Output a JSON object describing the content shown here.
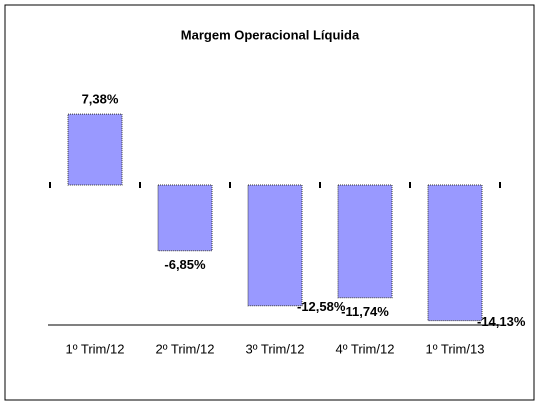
{
  "chart_data": {
    "type": "bar",
    "title": "Margem Operacional Líquida",
    "categories": [
      "1º Trim/12",
      "2º Trim/12",
      "3º Trim/12",
      "4º Trim/12",
      "1º Trim/13"
    ],
    "values": [
      7.38,
      -6.85,
      -12.58,
      -11.74,
      -14.13
    ],
    "value_labels": [
      "7,38%",
      "-6,85%",
      "-12,58%",
      "-11,74%",
      "-14,13%"
    ],
    "color": "#9999ff"
  }
}
